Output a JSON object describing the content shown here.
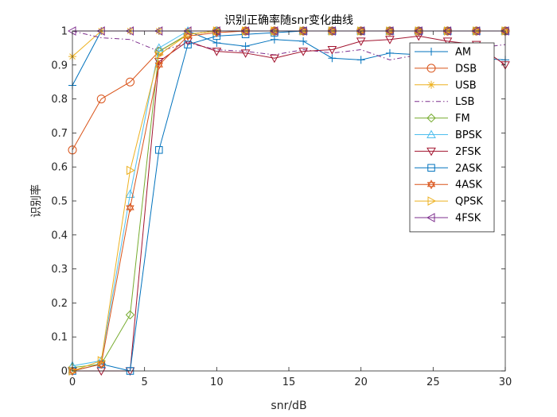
{
  "chart_data": {
    "type": "line",
    "title": "识别正确率随snr变化曲线",
    "xlabel": "snr/dB",
    "ylabel": "识别率",
    "xlim": [
      0,
      30
    ],
    "ylim": [
      0,
      1
    ],
    "xticks": [
      0,
      5,
      10,
      15,
      20,
      25,
      30
    ],
    "yticks": [
      0,
      0.1,
      0.2,
      0.3,
      0.4,
      0.5,
      0.6,
      0.7,
      0.8,
      0.9,
      1
    ],
    "ytick_labels": [
      "0",
      "0.1",
      "0.2",
      "0.3",
      "0.4",
      "0.5",
      "0.6",
      "0.7",
      "0.8",
      "0.9",
      "1"
    ],
    "grid": false,
    "legend_position": "top-right",
    "x": [
      0,
      2,
      4,
      6,
      8,
      10,
      12,
      14,
      16,
      18,
      20,
      22,
      24,
      26,
      28,
      30
    ],
    "series": [
      {
        "name": "AM",
        "color": "#0072BD",
        "marker": "plus",
        "dash": "solid",
        "values": [
          0.84,
          1.0,
          1.0,
          1.0,
          1.0,
          0.965,
          0.955,
          0.975,
          0.97,
          0.92,
          0.915,
          0.935,
          0.93,
          0.93,
          0.92,
          0.915
        ]
      },
      {
        "name": "DSB",
        "color": "#D95319",
        "marker": "circle",
        "dash": "solid",
        "values": [
          0.65,
          0.8,
          0.85,
          0.94,
          0.99,
          1.0,
          1.0,
          1.0,
          1.0,
          1.0,
          1.0,
          1.0,
          1.0,
          1.0,
          1.0,
          1.0
        ]
      },
      {
        "name": "USB",
        "color": "#EDB120",
        "marker": "asterisk",
        "dash": "solid",
        "values": [
          0.925,
          1.0,
          1.0,
          1.0,
          1.0,
          1.0,
          1.0,
          1.0,
          1.0,
          1.0,
          1.0,
          1.0,
          1.0,
          1.0,
          1.0,
          1.0
        ]
      },
      {
        "name": "LSB",
        "color": "#7E2F8E",
        "marker": "none",
        "dash": "dashdot",
        "values": [
          1.0,
          0.98,
          0.975,
          0.94,
          0.965,
          0.945,
          0.94,
          0.93,
          0.945,
          0.935,
          0.945,
          0.915,
          0.93,
          0.945,
          0.95,
          0.96
        ]
      },
      {
        "name": "FM",
        "color": "#77AC30",
        "marker": "diamond",
        "dash": "solid",
        "values": [
          0.01,
          0.02,
          0.165,
          0.94,
          0.99,
          1.0,
          1.0,
          1.0,
          1.0,
          1.0,
          1.0,
          1.0,
          1.0,
          1.0,
          1.0,
          1.0
        ]
      },
      {
        "name": "BPSK",
        "color": "#4DBEEE",
        "marker": "triangle-up",
        "dash": "solid",
        "values": [
          0.015,
          0.03,
          0.52,
          0.95,
          1.0,
          1.0,
          1.0,
          1.0,
          1.0,
          1.0,
          1.0,
          1.0,
          1.0,
          1.0,
          1.0,
          1.0
        ]
      },
      {
        "name": "2FSK",
        "color": "#A2142F",
        "marker": "triangle-down",
        "dash": "solid",
        "values": [
          0.0,
          0.0,
          0.0,
          0.91,
          0.97,
          0.94,
          0.935,
          0.92,
          0.94,
          0.945,
          0.97,
          0.975,
          0.985,
          0.97,
          0.96,
          0.9
        ]
      },
      {
        "name": "2ASK",
        "color": "#0072BD",
        "marker": "square",
        "dash": "solid",
        "values": [
          0.0,
          0.02,
          0.0,
          0.65,
          0.96,
          0.985,
          0.99,
          0.995,
          1.0,
          1.0,
          1.0,
          1.0,
          1.0,
          1.0,
          1.0,
          1.0
        ]
      },
      {
        "name": "4ASK",
        "color": "#D95319",
        "marker": "hexagram",
        "dash": "solid",
        "values": [
          0.0,
          0.02,
          0.48,
          0.9,
          0.985,
          0.995,
          1.0,
          1.0,
          1.0,
          1.0,
          1.0,
          1.0,
          1.0,
          1.0,
          1.0,
          1.0
        ]
      },
      {
        "name": "QPSK",
        "color": "#EDB120",
        "marker": "triangle-right",
        "dash": "solid",
        "values": [
          0.0,
          0.03,
          0.59,
          0.93,
          0.99,
          1.0,
          1.0,
          1.0,
          1.0,
          1.0,
          1.0,
          1.0,
          1.0,
          1.0,
          1.0,
          1.0
        ]
      },
      {
        "name": "4FSK",
        "color": "#7E2F8E",
        "marker": "triangle-left",
        "dash": "solid",
        "values": [
          1.0,
          1.0,
          1.0,
          1.0,
          1.0,
          1.0,
          1.0,
          1.0,
          1.0,
          1.0,
          1.0,
          1.0,
          1.0,
          1.0,
          1.0,
          1.0
        ]
      }
    ]
  }
}
